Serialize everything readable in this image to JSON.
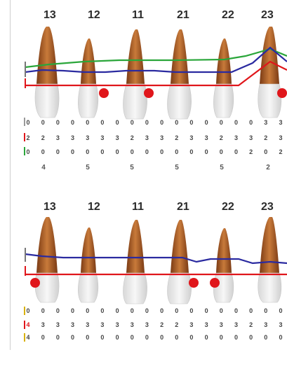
{
  "colors": {
    "gingival_margin": "#e0161b",
    "pocket_depth": "#2a2aa0",
    "attachment": "#2aa63a",
    "bleeding_dot": "#e0161b",
    "root": "#b8602a",
    "crown": "#e8e8e8"
  },
  "upper_panel": {
    "tooth_numbers": [
      "13",
      "12",
      "11",
      "21",
      "22",
      "23"
    ],
    "rows": {
      "row1": [
        "0",
        "0",
        "0",
        "0",
        "0",
        "0",
        "0",
        "0",
        "0",
        "0",
        "0",
        "0",
        "0",
        "0",
        "0",
        "0",
        "3",
        "3"
      ],
      "row2": [
        "2",
        "2",
        "3",
        "3",
        "3",
        "3",
        "3",
        "2",
        "3",
        "3",
        "2",
        "3",
        "3",
        "2",
        "3",
        "3",
        "2",
        "3"
      ],
      "row3": [
        "0",
        "0",
        "0",
        "0",
        "0",
        "0",
        "0",
        "0",
        "0",
        "0",
        "0",
        "0",
        "0",
        "0",
        "0",
        "2",
        "0",
        "2"
      ]
    },
    "sums": [
      "4",
      "5",
      "5",
      "5",
      "5",
      "2"
    ],
    "bleeding_points": [
      {
        "tooth": "12",
        "site": "distal"
      },
      {
        "tooth": "11",
        "site": "distal"
      },
      {
        "tooth": "23",
        "site": "distal"
      }
    ]
  },
  "lower_panel": {
    "tooth_numbers": [
      "13",
      "12",
      "11",
      "21",
      "22",
      "23"
    ],
    "rows": {
      "row1": [
        "0",
        "0",
        "0",
        "0",
        "0",
        "0",
        "0",
        "0",
        "0",
        "0",
        "0",
        "0",
        "0",
        "0",
        "0",
        "0",
        "0",
        "0"
      ],
      "row2": [
        "4",
        "3",
        "3",
        "3",
        "3",
        "3",
        "3",
        "3",
        "3",
        "2",
        "2",
        "3",
        "3",
        "3",
        "3",
        "2",
        "3",
        "3"
      ],
      "row3": [
        "4",
        "0",
        "0",
        "0",
        "0",
        "0",
        "0",
        "0",
        "0",
        "0",
        "0",
        "0",
        "0",
        "0",
        "0",
        "0",
        "0",
        "0"
      ]
    },
    "row2_red_index": 0,
    "bleeding_points": [
      {
        "tooth": "13",
        "site": "mesial"
      },
      {
        "tooth": "21",
        "site": "distal"
      },
      {
        "tooth": "22",
        "site": "mesial"
      }
    ]
  }
}
